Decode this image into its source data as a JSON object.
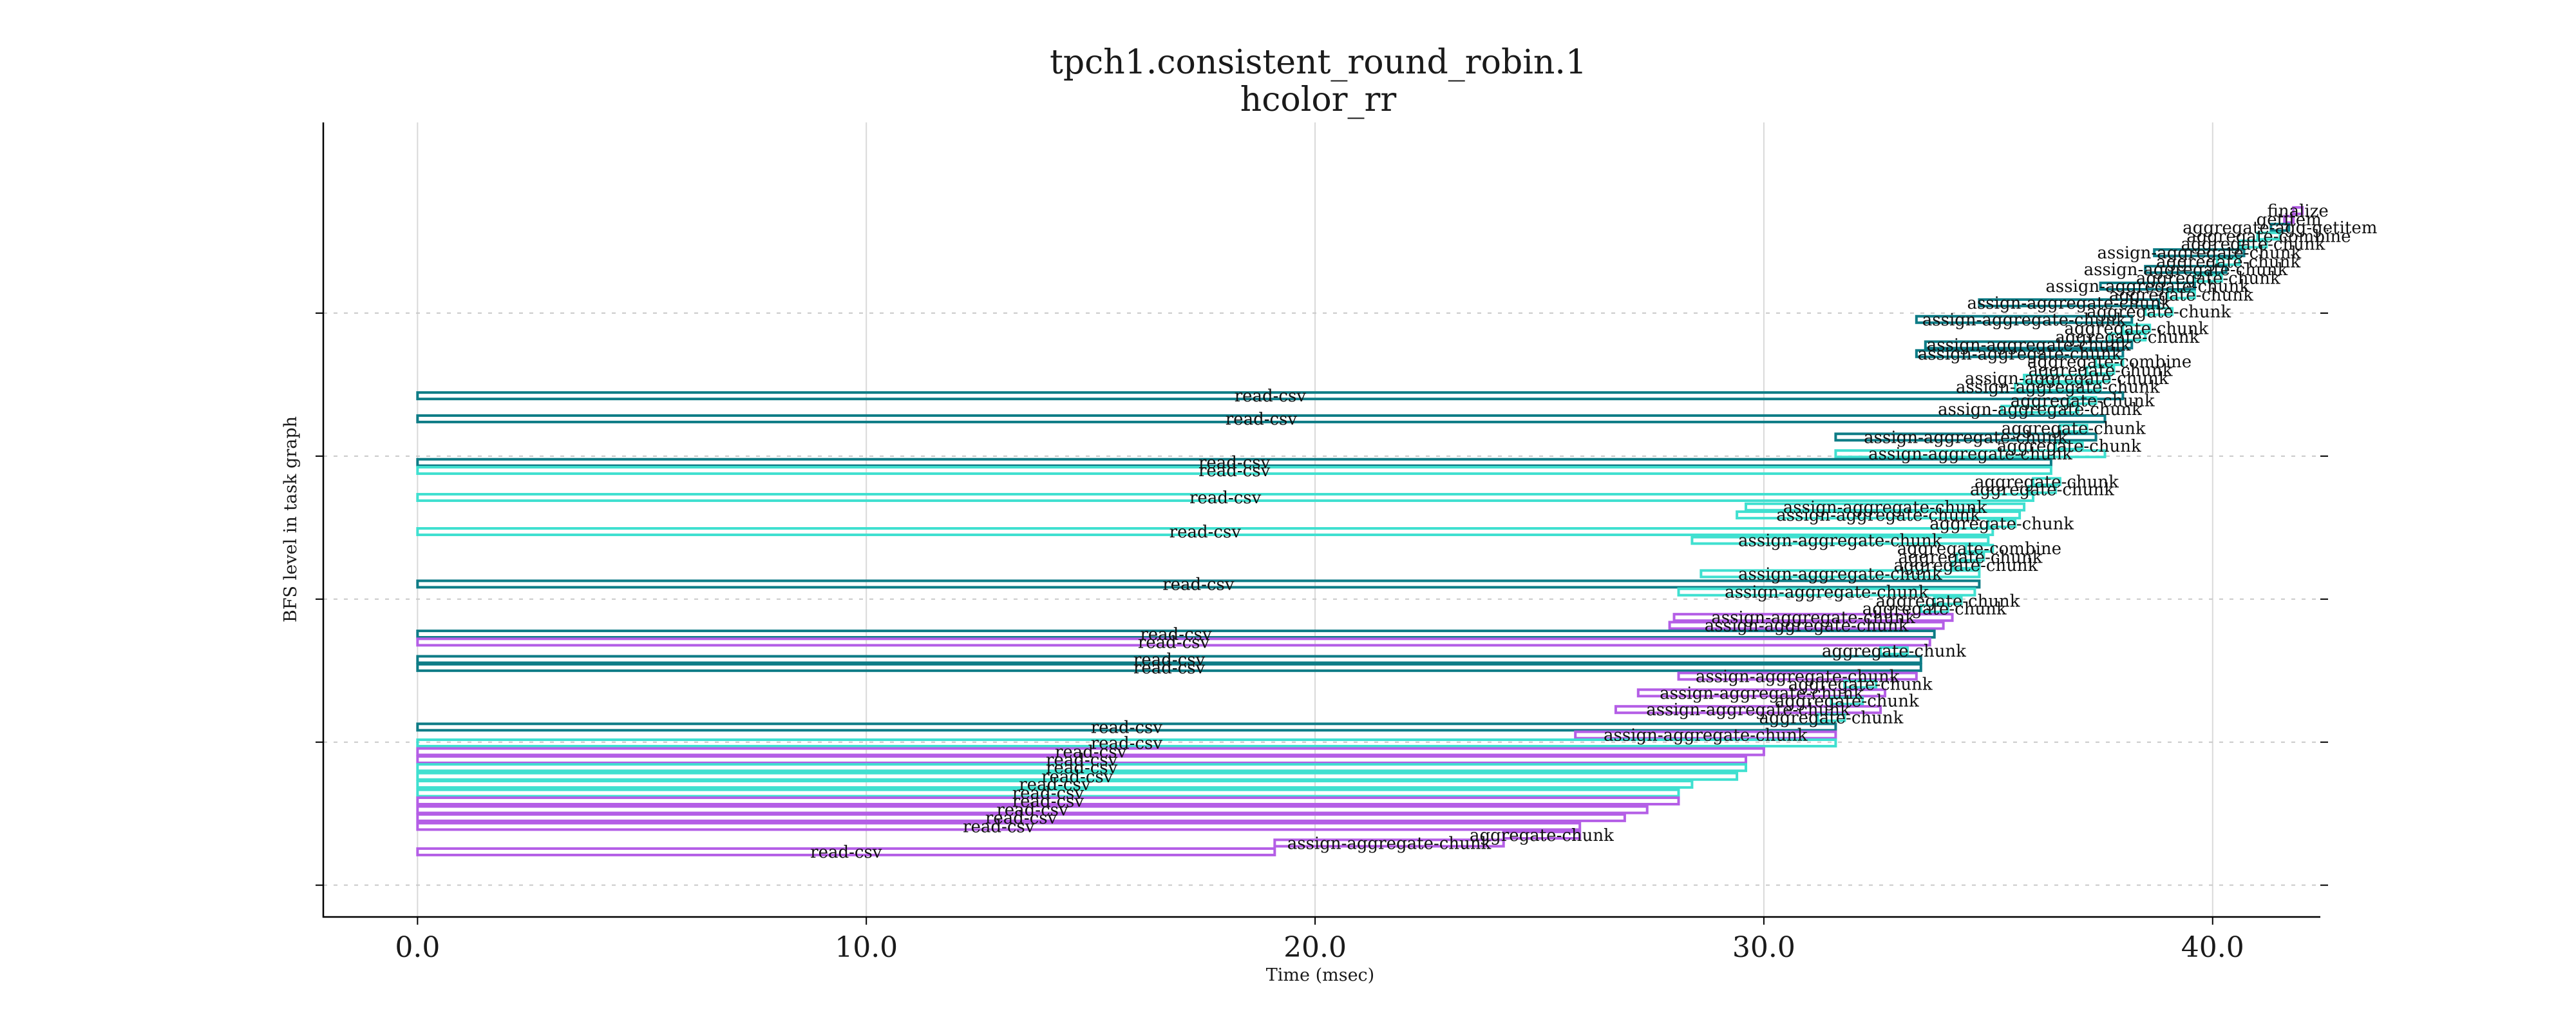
{
  "chart_data": {
    "type": "gantt",
    "title": "tpch1.consistent_round_robin.1",
    "subtitle": "hcolor_rr",
    "xlabel": "Time (msec)",
    "ylabel": "BFS level in task graph",
    "xlim": [
      -2.1,
      42.4
    ],
    "ylim": [
      0,
      100
    ],
    "xticks": [
      0,
      10,
      20,
      30,
      40
    ],
    "xtick_labels": [
      "0.0",
      "10.0",
      "20.0",
      "30.0",
      "40.0"
    ],
    "ytick_levels": [
      4,
      22,
      40,
      58,
      76
    ],
    "vertical_grid": true,
    "horizontal_grid": "dotted",
    "colors": {
      "teal": "#0e7c86",
      "turquoise": "#40e0d0",
      "purple": "#b45ee6"
    },
    "tasks": [
      {
        "name": "finalize",
        "start": 41.8,
        "end": 42.0,
        "level": 88.9,
        "color": "purple"
      },
      {
        "name": "getitem",
        "start": 41.6,
        "end": 41.8,
        "level": 87.8,
        "color": "purple"
      },
      {
        "name": "aggregate-agg-getitem",
        "start": 41.3,
        "end": 41.7,
        "level": 86.8,
        "color": "teal"
      },
      {
        "name": "aggregate-combine",
        "start": 41.0,
        "end": 41.5,
        "level": 85.7,
        "color": "turquoise"
      },
      {
        "name": "aggregate-chunk",
        "start": 40.6,
        "end": 41.2,
        "level": 84.7,
        "color": "turquoise"
      },
      {
        "name": "assign-aggregate-chunk",
        "start": 38.7,
        "end": 40.7,
        "level": 83.6,
        "color": "teal"
      },
      {
        "name": "aggregate-chunk",
        "start": 40.1,
        "end": 40.6,
        "level": 82.5,
        "color": "turquoise"
      },
      {
        "name": "assign-aggregate-chunk",
        "start": 38.5,
        "end": 40.3,
        "level": 81.5,
        "color": "teal"
      },
      {
        "name": "aggregate-chunk",
        "start": 39.6,
        "end": 40.2,
        "level": 80.4,
        "color": "turquoise"
      },
      {
        "name": "assign-aggregate-chunk",
        "start": 37.5,
        "end": 39.6,
        "level": 79.4,
        "color": "teal"
      },
      {
        "name": "aggregate-chunk",
        "start": 39.0,
        "end": 39.6,
        "level": 78.3,
        "color": "turquoise"
      },
      {
        "name": "assign-aggregate-chunk",
        "start": 34.8,
        "end": 38.8,
        "level": 77.3,
        "color": "teal"
      },
      {
        "name": "aggregate-chunk",
        "start": 38.5,
        "end": 39.1,
        "level": 76.2,
        "color": "turquoise"
      },
      {
        "name": "assign-aggregate-chunk",
        "start": 33.4,
        "end": 38.2,
        "level": 75.2,
        "color": "teal"
      },
      {
        "name": "aggregate-chunk",
        "start": 38.0,
        "end": 38.6,
        "level": 74.1,
        "color": "turquoise"
      },
      {
        "name": "aggregate-chunk",
        "start": 37.7,
        "end": 38.5,
        "level": 73.0,
        "color": "turquoise"
      },
      {
        "name": "assign-aggregate-chunk",
        "start": 33.6,
        "end": 38.2,
        "level": 72.0,
        "color": "teal"
      },
      {
        "name": "assign-aggregate-chunk",
        "start": 33.4,
        "end": 38.0,
        "level": 70.9,
        "color": "teal"
      },
      {
        "name": "aggregate-combine",
        "start": 37.4,
        "end": 38.0,
        "level": 69.9,
        "color": "turquoise"
      },
      {
        "name": "aggregate-chunk",
        "start": 37.2,
        "end": 37.8,
        "level": 68.8,
        "color": "turquoise"
      },
      {
        "name": "assign-aggregate-chunk",
        "start": 35.8,
        "end": 37.7,
        "level": 67.8,
        "color": "turquoise"
      },
      {
        "name": "assign-aggregate-chunk",
        "start": 35.6,
        "end": 37.5,
        "level": 66.7,
        "color": "turquoise"
      },
      {
        "name": "read-csv",
        "start": 0.0,
        "end": 38.0,
        "level": 65.6,
        "color": "teal"
      },
      {
        "name": "aggregate-chunk",
        "start": 36.8,
        "end": 37.4,
        "level": 65.0,
        "color": "turquoise"
      },
      {
        "name": "assign-aggregate-chunk",
        "start": 35.3,
        "end": 37.0,
        "level": 63.9,
        "color": "turquoise"
      },
      {
        "name": "read-csv",
        "start": 0.0,
        "end": 37.6,
        "level": 62.7,
        "color": "teal"
      },
      {
        "name": "aggregate-chunk",
        "start": 36.6,
        "end": 37.2,
        "level": 61.5,
        "color": "turquoise"
      },
      {
        "name": "assign-aggregate-chunk",
        "start": 31.6,
        "end": 37.4,
        "level": 60.4,
        "color": "teal"
      },
      {
        "name": "aggregate-chunk",
        "start": 36.5,
        "end": 37.1,
        "level": 59.3,
        "color": "turquoise"
      },
      {
        "name": "assign-aggregate-chunk",
        "start": 31.6,
        "end": 37.6,
        "level": 58.3,
        "color": "turquoise"
      },
      {
        "name": "read-csv",
        "start": 0.0,
        "end": 36.4,
        "level": 57.2,
        "color": "teal"
      },
      {
        "name": "read-csv",
        "start": 0.0,
        "end": 36.4,
        "level": 56.2,
        "color": "turquoise"
      },
      {
        "name": "aggregate-chunk",
        "start": 36.0,
        "end": 36.6,
        "level": 54.8,
        "color": "turquoise"
      },
      {
        "name": "aggregate-chunk",
        "start": 35.9,
        "end": 36.5,
        "level": 53.8,
        "color": "turquoise"
      },
      {
        "name": "read-csv",
        "start": 0.0,
        "end": 36.0,
        "level": 52.8,
        "color": "turquoise"
      },
      {
        "name": "assign-aggregate-chunk",
        "start": 29.6,
        "end": 35.8,
        "level": 51.6,
        "color": "turquoise"
      },
      {
        "name": "assign-aggregate-chunk",
        "start": 29.4,
        "end": 35.7,
        "level": 50.6,
        "color": "turquoise"
      },
      {
        "name": "aggregate-chunk",
        "start": 35.0,
        "end": 35.6,
        "level": 49.5,
        "color": "turquoise"
      },
      {
        "name": "read-csv",
        "start": 0.0,
        "end": 35.1,
        "level": 48.5,
        "color": "turquoise"
      },
      {
        "name": "assign-aggregate-chunk",
        "start": 28.4,
        "end": 35.0,
        "level": 47.4,
        "color": "turquoise"
      },
      {
        "name": "aggregate-combine",
        "start": 34.5,
        "end": 35.1,
        "level": 46.4,
        "color": "turquoise"
      },
      {
        "name": "aggregate-chunk",
        "start": 34.3,
        "end": 34.9,
        "level": 45.3,
        "color": "turquoise"
      },
      {
        "name": "aggregate-chunk",
        "start": 34.2,
        "end": 34.8,
        "level": 44.3,
        "color": "turquoise"
      },
      {
        "name": "assign-aggregate-chunk",
        "start": 28.6,
        "end": 34.8,
        "level": 43.2,
        "color": "turquoise"
      },
      {
        "name": "read-csv",
        "start": 0.0,
        "end": 34.8,
        "level": 41.9,
        "color": "teal"
      },
      {
        "name": "assign-aggregate-chunk",
        "start": 28.1,
        "end": 34.7,
        "level": 40.9,
        "color": "turquoise"
      },
      {
        "name": "aggregate-chunk",
        "start": 33.8,
        "end": 34.4,
        "level": 39.8,
        "color": "turquoise"
      },
      {
        "name": "aggregate-chunk",
        "start": 33.5,
        "end": 34.1,
        "level": 38.8,
        "color": "turquoise"
      },
      {
        "name": "assign-aggregate-chunk",
        "start": 28.0,
        "end": 34.2,
        "level": 37.7,
        "color": "purple"
      },
      {
        "name": "assign-aggregate-chunk",
        "start": 27.9,
        "end": 34.0,
        "level": 36.7,
        "color": "purple"
      },
      {
        "name": "read-csv",
        "start": 0.0,
        "end": 33.8,
        "level": 35.6,
        "color": "teal"
      },
      {
        "name": "read-csv",
        "start": 0.0,
        "end": 33.7,
        "level": 34.6,
        "color": "purple"
      },
      {
        "name": "aggregate-chunk",
        "start": 32.6,
        "end": 33.2,
        "level": 33.5,
        "color": "turquoise"
      },
      {
        "name": "read-csv",
        "start": 0.0,
        "end": 33.5,
        "level": 32.4,
        "color": "teal"
      },
      {
        "name": "read-csv",
        "start": 0.0,
        "end": 33.5,
        "level": 31.4,
        "color": "teal"
      },
      {
        "name": "assign-aggregate-chunk",
        "start": 28.1,
        "end": 33.4,
        "level": 30.3,
        "color": "purple"
      },
      {
        "name": "aggregate-chunk",
        "start": 31.8,
        "end": 32.5,
        "level": 29.3,
        "color": "turquoise"
      },
      {
        "name": "assign-aggregate-chunk",
        "start": 27.2,
        "end": 32.7,
        "level": 28.2,
        "color": "purple"
      },
      {
        "name": "aggregate-chunk",
        "start": 31.5,
        "end": 32.2,
        "level": 27.2,
        "color": "turquoise"
      },
      {
        "name": "assign-aggregate-chunk",
        "start": 26.7,
        "end": 32.6,
        "level": 26.1,
        "color": "purple"
      },
      {
        "name": "aggregate-chunk",
        "start": 31.2,
        "end": 31.8,
        "level": 25.1,
        "color": "turquoise"
      },
      {
        "name": "read-csv",
        "start": 0.0,
        "end": 31.6,
        "level": 23.9,
        "color": "teal"
      },
      {
        "name": "assign-aggregate-chunk",
        "start": 25.8,
        "end": 31.6,
        "level": 22.9,
        "color": "purple"
      },
      {
        "name": "read-csv",
        "start": 0.0,
        "end": 31.6,
        "level": 21.9,
        "color": "turquoise"
      },
      {
        "name": "read-csv",
        "start": 0.0,
        "end": 30.0,
        "level": 20.8,
        "color": "purple"
      },
      {
        "name": "read-csv",
        "start": 0.0,
        "end": 29.6,
        "level": 19.8,
        "color": "purple"
      },
      {
        "name": "read-csv",
        "start": 0.0,
        "end": 29.6,
        "level": 18.8,
        "color": "turquoise"
      },
      {
        "name": "read-csv",
        "start": 0.0,
        "end": 29.4,
        "level": 17.7,
        "color": "turquoise"
      },
      {
        "name": "read-csv",
        "start": 0.0,
        "end": 28.4,
        "level": 16.7,
        "color": "turquoise"
      },
      {
        "name": "read-csv",
        "start": 0.0,
        "end": 28.1,
        "level": 15.6,
        "color": "turquoise"
      },
      {
        "name": "read-csv",
        "start": 0.0,
        "end": 28.1,
        "level": 14.6,
        "color": "purple"
      },
      {
        "name": "read-csv",
        "start": 0.0,
        "end": 27.4,
        "level": 13.5,
        "color": "purple"
      },
      {
        "name": "read-csv",
        "start": 0.0,
        "end": 26.9,
        "level": 12.5,
        "color": "purple"
      },
      {
        "name": "read-csv",
        "start": 0.0,
        "end": 25.9,
        "level": 11.4,
        "color": "purple"
      },
      {
        "name": "aggregate-chunk",
        "start": 24.2,
        "end": 25.9,
        "level": 10.3,
        "color": "purple"
      },
      {
        "name": "assign-aggregate-chunk",
        "start": 19.1,
        "end": 24.2,
        "level": 9.3,
        "color": "purple"
      },
      {
        "name": "read-csv",
        "start": 0.0,
        "end": 19.1,
        "level": 8.2,
        "color": "purple"
      }
    ]
  }
}
